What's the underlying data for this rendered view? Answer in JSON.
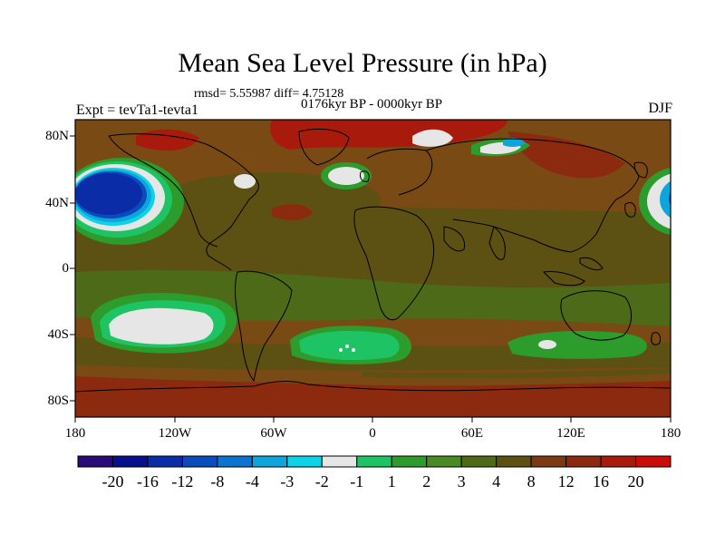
{
  "title": "Mean Sea Level Pressure (in hPa)",
  "stats": "rmsd= 5.55987 diff= 4.75128",
  "subtitle": "0176kyr BP - 0000kyr BP",
  "experiment": "Expt = tevTa1-tevta1",
  "season": "DJF",
  "map": {
    "lat_labels": [
      "80N",
      "40N",
      "0",
      "40S",
      "80S"
    ],
    "lon_labels": [
      "180",
      "120W",
      "60W",
      "0",
      "60E",
      "120E",
      "180"
    ]
  },
  "colorbar": {
    "colors": [
      "#2a0a78",
      "#08108c",
      "#0a2ca6",
      "#0a4cbe",
      "#0c74d0",
      "#0ea4dc",
      "#0cd4e6",
      "#e6e6e6",
      "#1ec464",
      "#2c9c2c",
      "#4a8a24",
      "#4c6a18",
      "#5c5012",
      "#7c3a12",
      "#8c2a10",
      "#a81a0c",
      "#cc0c08"
    ],
    "labels": [
      "-20",
      "-16",
      "-12",
      "-8",
      "-4",
      "-3",
      "-2",
      "-1",
      "1",
      "2",
      "3",
      "4",
      "8",
      "12",
      "16",
      "20"
    ]
  },
  "colors": {
    "background": "#7a4a14",
    "olive": "#5c5012",
    "green_dark": "#4c6a18",
    "green_mid": "#2c9c2c",
    "green_light": "#1ec464",
    "white": "#e6e6e6",
    "blue_deep": "#0a2ca6",
    "red": "#cc0c08"
  }
}
